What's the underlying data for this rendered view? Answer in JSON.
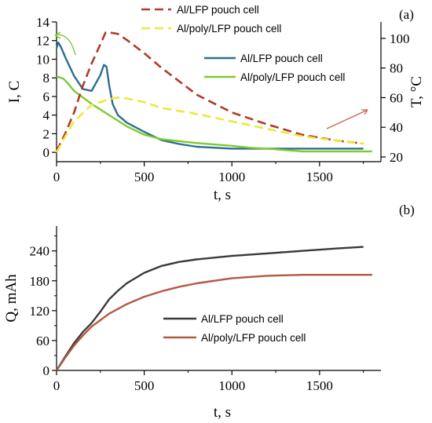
{
  "chart_data": [
    {
      "panel": "(a)",
      "type": "line",
      "xlabel": "t, s",
      "ylabel": "I, C",
      "y2label": "T, °C",
      "xlim": [
        0,
        1850
      ],
      "ylim": [
        -1,
        14
      ],
      "y2lim": [
        20,
        110
      ],
      "xticks": [
        0,
        500,
        1000,
        1500
      ],
      "yticks": [
        0,
        2,
        4,
        6,
        8,
        10,
        12,
        14
      ],
      "y2ticks": [
        20,
        40,
        60,
        80,
        100
      ],
      "series": [
        {
          "name": "Al/LFP pouch cell",
          "quantity": "current",
          "axis": "left",
          "color": "#2e6e8e",
          "style": "solid",
          "x": [
            0,
            10,
            25,
            50,
            100,
            150,
            200,
            250,
            270,
            285,
            300,
            320,
            350,
            400,
            500,
            600,
            700,
            800,
            900,
            1000,
            1200,
            1400,
            1600,
            1750
          ],
          "y": [
            11.2,
            11.8,
            11.3,
            10.2,
            8.2,
            6.8,
            6.6,
            8.3,
            9.4,
            9.2,
            7.2,
            5.2,
            4.0,
            3.2,
            2.2,
            1.3,
            0.9,
            0.6,
            0.5,
            0.4,
            0.4,
            0.4,
            0.4,
            0.4
          ]
        },
        {
          "name": "Al/poly/LFP pouch cell",
          "quantity": "current",
          "axis": "left",
          "color": "#7ccc2e",
          "style": "solid",
          "x": [
            0,
            10,
            40,
            60,
            100,
            200,
            300,
            400,
            500,
            600,
            800,
            1000,
            1100,
            1200,
            1400,
            1600,
            1800
          ],
          "y": [
            8.0,
            8.1,
            7.9,
            7.5,
            6.6,
            5.2,
            4.0,
            2.8,
            1.9,
            1.4,
            1.0,
            0.7,
            0.5,
            0.4,
            0.1,
            0.1,
            0.1
          ]
        },
        {
          "name": "Al/LFP pouch cell",
          "quantity": "temperature",
          "axis": "right",
          "color": "#b33a2a",
          "style": "dashed",
          "x": [
            0,
            50,
            100,
            150,
            200,
            250,
            280,
            300,
            350,
            400,
            500,
            600,
            700,
            800,
            1000,
            1200,
            1400,
            1600,
            1750
          ],
          "y": [
            24,
            36,
            50,
            68,
            83,
            96,
            104,
            104,
            103,
            99,
            90,
            80,
            71,
            62,
            50,
            42,
            35,
            31,
            29
          ]
        },
        {
          "name": "Al/poly/LFP pouch cell",
          "quantity": "temperature",
          "axis": "right",
          "color": "#eaea3a",
          "style": "dashed",
          "x": [
            0,
            50,
            100,
            200,
            300,
            350,
            400,
            500,
            600,
            800,
            1000,
            1200,
            1400,
            1600,
            1750
          ],
          "y": [
            23,
            34,
            44,
            55,
            59,
            60,
            59.5,
            57,
            53,
            49,
            44,
            39,
            34,
            31,
            29
          ]
        }
      ]
    },
    {
      "panel": "(b)",
      "type": "line",
      "xlabel": "t, s",
      "ylabel": "Q, mAh",
      "xlim": [
        0,
        1850
      ],
      "ylim": [
        0,
        290
      ],
      "xticks": [
        0,
        500,
        1000,
        1500
      ],
      "yticks": [
        0,
        60,
        120,
        180,
        240
      ],
      "series": [
        {
          "name": "Al/LFP pouch cell",
          "color": "#3a3a3a",
          "x": [
            0,
            50,
            100,
            150,
            200,
            250,
            300,
            350,
            400,
            500,
            600,
            700,
            800,
            1000,
            1200,
            1400,
            1600,
            1750
          ],
          "y": [
            0,
            28,
            55,
            77,
            95,
            118,
            143,
            160,
            175,
            196,
            210,
            218,
            223,
            230,
            235,
            240,
            245,
            248
          ]
        },
        {
          "name": "Al/poly/LFP pouch cell",
          "color": "#b05a40",
          "x": [
            0,
            50,
            100,
            150,
            200,
            300,
            400,
            500,
            600,
            700,
            800,
            1000,
            1200,
            1300,
            1400,
            1600,
            1800
          ],
          "y": [
            0,
            26,
            50,
            70,
            88,
            114,
            133,
            148,
            159,
            168,
            175,
            185,
            190,
            191,
            192,
            192,
            192
          ]
        }
      ]
    }
  ]
}
